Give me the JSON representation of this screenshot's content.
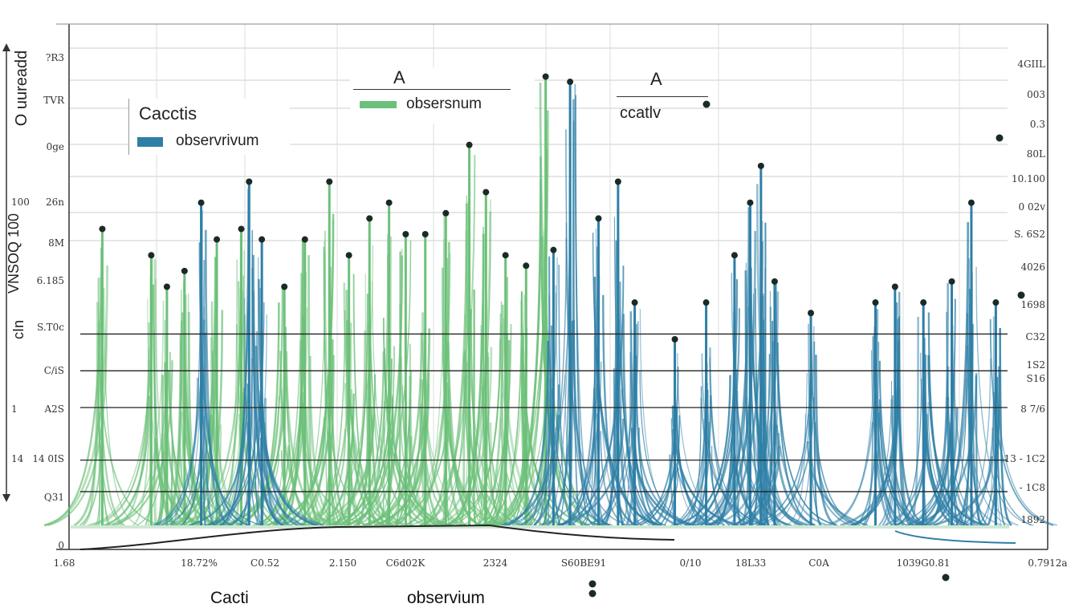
{
  "chart_data": {
    "type": "line",
    "title": "",
    "xlabel": "Cacti",
    "xlabel2": "observium",
    "ylabel": "O uureadd",
    "ylabel2": "VNSOQ 100",
    "ylabel3": "cIn",
    "xlim": [
      0,
      100
    ],
    "ylim": [
      0,
      100
    ],
    "grid": true,
    "legend": [
      {
        "position": "top-left",
        "title": "Cacctis",
        "entry": "observrivum",
        "color": "#2e7fa6"
      },
      {
        "position": "top-center",
        "title": "A",
        "entry": "obsersnum",
        "color": "#6cc079"
      },
      {
        "position": "top-right",
        "title": "A",
        "entry": "ccatlv"
      }
    ],
    "x_tick_labels": [
      "1.68",
      "18.72%",
      "C0.52",
      "2.150",
      "C6d02K",
      "2324",
      "S60BE91",
      "0/10",
      "18L33",
      "C0A",
      "1039G0.81",
      "0.7912a"
    ],
    "y_tick_labels_left": [
      "?R3",
      "TVR",
      "0ge",
      "26n",
      "8M",
      "6.185",
      "S.T0c",
      "C/iS",
      "A2S",
      "14 0IS",
      "Q31",
      "0"
    ],
    "y_axis_side_numbers": [
      "100",
      "1",
      "14"
    ],
    "y_tick_labels_right": [
      "4GIIL",
      "003",
      "0.3",
      "80L",
      "10.100",
      "0 02v",
      "S. 6S2",
      "4026",
      "1698",
      "C32",
      "1S2",
      "S16",
      "8 7/6",
      "13 - 1C2",
      "- 1C8",
      "1892"
    ],
    "series": [
      {
        "color": "#6cc079",
        "points": [
          [
            3.4,
            61
          ],
          [
            8.4,
            56
          ],
          [
            10,
            50
          ],
          [
            11.8,
            53
          ],
          [
            15.1,
            59
          ],
          [
            17.6,
            61
          ],
          [
            22,
            50
          ],
          [
            24.1,
            59
          ],
          [
            26.6,
            70
          ],
          [
            28.6,
            56
          ],
          [
            30.7,
            63
          ],
          [
            32.7,
            66
          ],
          [
            34.4,
            60
          ],
          [
            36.4,
            60
          ],
          [
            38.5,
            64
          ],
          [
            40.9,
            77
          ],
          [
            42.6,
            68
          ],
          [
            44.6,
            56
          ],
          [
            46.7,
            54
          ],
          [
            48.7,
            90
          ]
        ]
      },
      {
        "color": "#2e7fa6",
        "points": [
          [
            13.5,
            66
          ],
          [
            18.4,
            70
          ],
          [
            19.7,
            59
          ],
          [
            49.5,
            57
          ],
          [
            51.2,
            89
          ],
          [
            54.1,
            63
          ],
          [
            56.1,
            70
          ],
          [
            57.8,
            47
          ],
          [
            61.9,
            40
          ],
          [
            65.1,
            47
          ],
          [
            68,
            56
          ],
          [
            69.6,
            66
          ],
          [
            70.7,
            73
          ],
          [
            72.1,
            51
          ],
          [
            75.8,
            45
          ],
          [
            82.4,
            47
          ],
          [
            84.4,
            50
          ],
          [
            87.3,
            47
          ],
          [
            90.2,
            51
          ],
          [
            92.2,
            66
          ],
          [
            94.7,
            47
          ]
        ]
      }
    ],
    "reference_lines": [
      41,
      34,
      27,
      17,
      11
    ],
    "colors": {
      "green": "#6cc079",
      "blue": "#2e7fa6",
      "marker": "#1b2a26"
    }
  }
}
